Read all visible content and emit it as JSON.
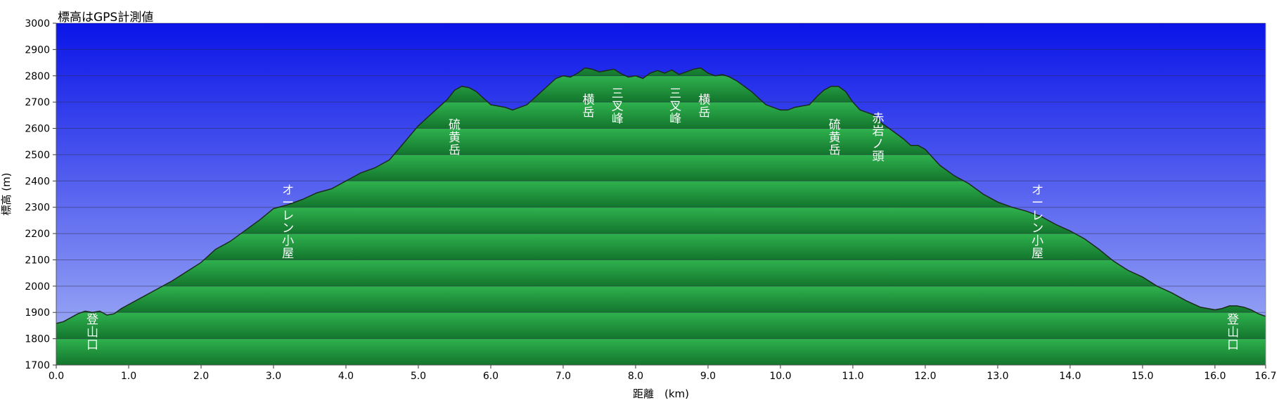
{
  "title": "標高はGPS計測値",
  "chart_data": {
    "type": "area",
    "title": "標高はGPS計測値",
    "xlabel": "距離　(km)",
    "ylabel": "標高 (m)",
    "xlim": [
      0,
      16.7
    ],
    "ylim": [
      1700,
      3000
    ],
    "x_ticks": [
      "0.0",
      "1.0",
      "2.0",
      "3.0",
      "4.0",
      "5.0",
      "6.0",
      "7.0",
      "8.0",
      "9.0",
      "10.0",
      "11.0",
      "12.0",
      "13.0",
      "14.0",
      "15.0",
      "16.0",
      "16.7"
    ],
    "y_ticks": [
      "1700",
      "1800",
      "1900",
      "2000",
      "2100",
      "2200",
      "2300",
      "2400",
      "2500",
      "2600",
      "2700",
      "2800",
      "2900",
      "3000"
    ],
    "grid": true,
    "colors": {
      "sky_top": "#0a14e8",
      "sky_bottom": "#a8b6f6",
      "terrain_light": "#2fb24e",
      "terrain_dark": "#13752d",
      "outline": "#1c2a1c"
    },
    "x": [
      0.0,
      0.1,
      0.2,
      0.3,
      0.4,
      0.5,
      0.6,
      0.7,
      0.8,
      0.9,
      1.0,
      1.2,
      1.4,
      1.6,
      1.8,
      2.0,
      2.2,
      2.4,
      2.6,
      2.8,
      3.0,
      3.2,
      3.4,
      3.6,
      3.8,
      4.0,
      4.2,
      4.4,
      4.6,
      4.8,
      5.0,
      5.2,
      5.4,
      5.5,
      5.6,
      5.7,
      5.8,
      6.0,
      6.2,
      6.3,
      6.5,
      6.7,
      6.9,
      7.0,
      7.1,
      7.2,
      7.3,
      7.4,
      7.5,
      7.6,
      7.7,
      7.8,
      7.9,
      8.0,
      8.1,
      8.2,
      8.3,
      8.4,
      8.5,
      8.6,
      8.7,
      8.8,
      8.9,
      9.0,
      9.1,
      9.2,
      9.3,
      9.4,
      9.6,
      9.8,
      10.0,
      10.1,
      10.2,
      10.4,
      10.5,
      10.6,
      10.7,
      10.8,
      10.9,
      11.0,
      11.1,
      11.2,
      11.3,
      11.4,
      11.5,
      11.6,
      11.7,
      11.8,
      11.9,
      12.0,
      12.1,
      12.2,
      12.4,
      12.6,
      12.8,
      13.0,
      13.2,
      13.4,
      13.6,
      13.8,
      14.0,
      14.2,
      14.4,
      14.6,
      14.8,
      15.0,
      15.2,
      15.4,
      15.6,
      15.8,
      16.0,
      16.1,
      16.2,
      16.3,
      16.4,
      16.5,
      16.6,
      16.7
    ],
    "elevations": [
      1858,
      1865,
      1880,
      1895,
      1905,
      1900,
      1905,
      1890,
      1895,
      1915,
      1930,
      1960,
      1990,
      2020,
      2055,
      2090,
      2140,
      2170,
      2210,
      2250,
      2295,
      2310,
      2330,
      2355,
      2370,
      2400,
      2430,
      2450,
      2480,
      2545,
      2610,
      2660,
      2710,
      2745,
      2760,
      2755,
      2740,
      2690,
      2680,
      2670,
      2690,
      2740,
      2790,
      2800,
      2795,
      2810,
      2830,
      2825,
      2815,
      2820,
      2825,
      2808,
      2795,
      2800,
      2790,
      2810,
      2820,
      2810,
      2822,
      2805,
      2815,
      2825,
      2830,
      2810,
      2800,
      2805,
      2795,
      2780,
      2740,
      2690,
      2670,
      2670,
      2680,
      2690,
      2720,
      2745,
      2760,
      2760,
      2740,
      2700,
      2670,
      2660,
      2650,
      2620,
      2600,
      2580,
      2560,
      2535,
      2535,
      2520,
      2490,
      2460,
      2420,
      2390,
      2350,
      2320,
      2300,
      2285,
      2265,
      2235,
      2210,
      2180,
      2140,
      2095,
      2060,
      2035,
      2000,
      1975,
      1945,
      1920,
      1910,
      1915,
      1925,
      1925,
      1920,
      1910,
      1895,
      1885
    ],
    "annotations": [
      {
        "text": "登山口",
        "x": 0.5,
        "y": 1810
      },
      {
        "text": "オーレン小屋",
        "x": 3.2,
        "y": 2230
      },
      {
        "text": "硫黄岳",
        "x": 5.5,
        "y": 2550
      },
      {
        "text": "横岳",
        "x": 7.35,
        "y": 2670
      },
      {
        "text": "三叉峰",
        "x": 7.75,
        "y": 2670
      },
      {
        "text": "三叉峰",
        "x": 8.55,
        "y": 2670
      },
      {
        "text": "横岳",
        "x": 8.95,
        "y": 2670
      },
      {
        "text": "硫黄岳",
        "x": 10.75,
        "y": 2550
      },
      {
        "text": "赤岩ノ頭",
        "x": 11.35,
        "y": 2550
      },
      {
        "text": "オーレン小屋",
        "x": 13.55,
        "y": 2230
      },
      {
        "text": "登山口",
        "x": 16.25,
        "y": 1810
      }
    ]
  }
}
